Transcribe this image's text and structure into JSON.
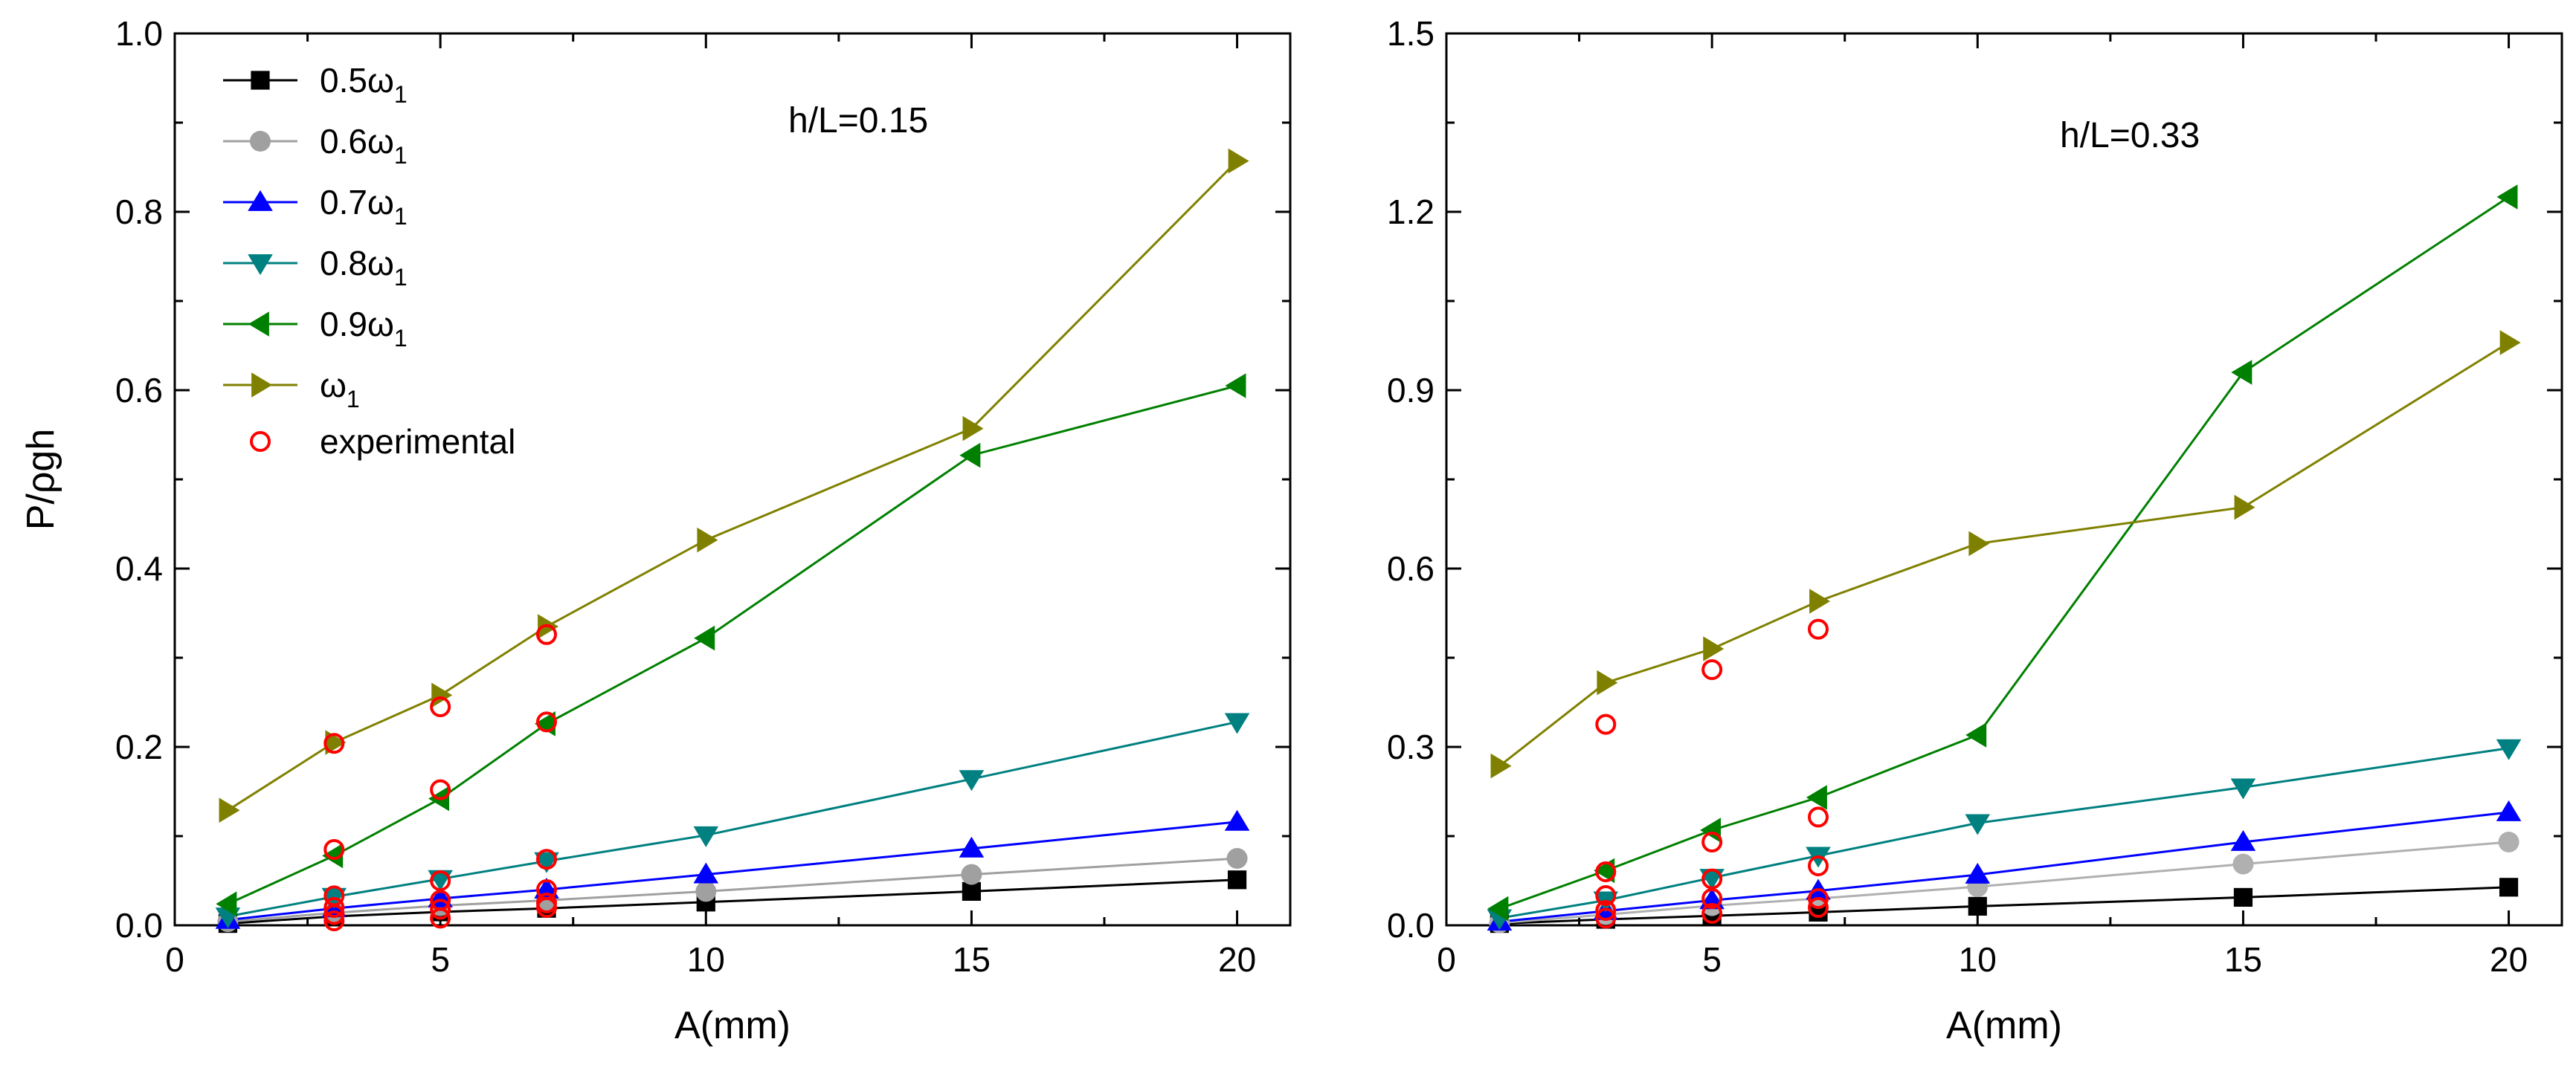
{
  "chart_data": [
    {
      "type": "line",
      "annotation": "h/L=0.15",
      "xlabel": "A(mm)",
      "ylabel": "P/ρgh",
      "xlim": [
        0,
        21
      ],
      "ylim": [
        0,
        1.0
      ],
      "xticks": [
        0,
        5,
        10,
        15,
        20
      ],
      "yticks": [
        0.0,
        0.2,
        0.4,
        0.6,
        0.8,
        1.0
      ],
      "ytick_labels": [
        "0.0",
        "0.2",
        "0.4",
        "0.6",
        "0.8",
        "1.0"
      ],
      "x": [
        1,
        3,
        5,
        7,
        10,
        15,
        20
      ],
      "series": [
        {
          "name": "0.5ω1",
          "label_main": "0.5ω",
          "label_sub": "1",
          "color": "#000000",
          "marker": "square",
          "values": [
            0.002,
            0.01,
            0.015,
            0.019,
            0.026,
            0.038,
            0.051
          ]
        },
        {
          "name": "0.6ω1",
          "label_main": "0.6ω",
          "label_sub": "1",
          "color": "#a0a0a0",
          "marker": "circle",
          "values": [
            0.004,
            0.014,
            0.022,
            0.028,
            0.038,
            0.057,
            0.075
          ]
        },
        {
          "name": "0.7ω1",
          "label_main": "0.7ω",
          "label_sub": "1",
          "color": "#0000ff",
          "marker": "triangle-up",
          "values": [
            0.006,
            0.019,
            0.03,
            0.04,
            0.057,
            0.086,
            0.116
          ]
        },
        {
          "name": "0.8ω1",
          "label_main": "0.8ω",
          "label_sub": "1",
          "color": "#008080",
          "marker": "triangle-down",
          "values": [
            0.01,
            0.032,
            0.052,
            0.072,
            0.101,
            0.164,
            0.228
          ]
        },
        {
          "name": "0.9ω1",
          "label_main": "0.9ω",
          "label_sub": "1",
          "color": "#008000",
          "marker": "triangle-left",
          "values": [
            0.024,
            0.078,
            0.142,
            0.226,
            0.322,
            0.527,
            0.605
          ]
        },
        {
          "name": "ω1",
          "label_main": "ω",
          "label_sub": "1",
          "color": "#808000",
          "marker": "triangle-right",
          "values": [
            0.129,
            0.205,
            0.258,
            0.335,
            0.432,
            0.557,
            0.857
          ]
        }
      ],
      "experimental": {
        "name": "experimental",
        "color": "#ff0000",
        "points": [
          {
            "x": 3,
            "y": 0.005
          },
          {
            "x": 3,
            "y": 0.012
          },
          {
            "x": 3,
            "y": 0.02
          },
          {
            "x": 3,
            "y": 0.033
          },
          {
            "x": 3,
            "y": 0.085
          },
          {
            "x": 3,
            "y": 0.204
          },
          {
            "x": 5,
            "y": 0.008
          },
          {
            "x": 5,
            "y": 0.018
          },
          {
            "x": 5,
            "y": 0.028
          },
          {
            "x": 5,
            "y": 0.05
          },
          {
            "x": 5,
            "y": 0.152
          },
          {
            "x": 5,
            "y": 0.245
          },
          {
            "x": 7,
            "y": 0.02
          },
          {
            "x": 7,
            "y": 0.025
          },
          {
            "x": 7,
            "y": 0.04
          },
          {
            "x": 7,
            "y": 0.074
          },
          {
            "x": 7,
            "y": 0.228
          },
          {
            "x": 7,
            "y": 0.326
          }
        ]
      }
    },
    {
      "type": "line",
      "annotation": "h/L=0.33",
      "xlabel": "A(mm)",
      "ylabel": "",
      "xlim": [
        0,
        21
      ],
      "ylim": [
        0,
        1.5
      ],
      "xticks": [
        0,
        5,
        10,
        15,
        20
      ],
      "yticks": [
        0.0,
        0.3,
        0.6,
        0.9,
        1.2,
        1.5
      ],
      "ytick_labels": [
        "0.0",
        "0.3",
        "0.6",
        "0.9",
        "1.2",
        "1.5"
      ],
      "x": [
        1,
        3,
        5,
        7,
        10,
        15,
        20
      ],
      "series": [
        {
          "name": "0.5ω1",
          "color": "#000000",
          "marker": "square",
          "values": [
            0.003,
            0.01,
            0.016,
            0.022,
            0.032,
            0.047,
            0.064
          ]
        },
        {
          "name": "0.6ω1",
          "color": "#b0b0b0",
          "marker": "circle",
          "values": [
            0.004,
            0.018,
            0.033,
            0.045,
            0.065,
            0.103,
            0.14
          ]
        },
        {
          "name": "0.7ω1",
          "color": "#0000ff",
          "marker": "triangle-up",
          "values": [
            0.006,
            0.024,
            0.042,
            0.058,
            0.085,
            0.14,
            0.19
          ]
        },
        {
          "name": "0.8ω1",
          "color": "#008080",
          "marker": "triangle-down",
          "values": [
            0.012,
            0.042,
            0.08,
            0.117,
            0.172,
            0.232,
            0.298
          ]
        },
        {
          "name": "0.9ω1",
          "color": "#008000",
          "marker": "triangle-left",
          "values": [
            0.028,
            0.092,
            0.16,
            0.215,
            0.32,
            0.93,
            1.225
          ]
        },
        {
          "name": "ω1",
          "color": "#808000",
          "marker": "triangle-right",
          "values": [
            0.268,
            0.408,
            0.465,
            0.545,
            0.642,
            0.703,
            0.98
          ]
        }
      ],
      "experimental": {
        "name": "experimental",
        "color": "#ff0000",
        "points": [
          {
            "x": 3,
            "y": 0.012
          },
          {
            "x": 3,
            "y": 0.025
          },
          {
            "x": 3,
            "y": 0.05
          },
          {
            "x": 3,
            "y": 0.09
          },
          {
            "x": 3,
            "y": 0.338
          },
          {
            "x": 5,
            "y": 0.02
          },
          {
            "x": 5,
            "y": 0.045
          },
          {
            "x": 5,
            "y": 0.078
          },
          {
            "x": 5,
            "y": 0.14
          },
          {
            "x": 5,
            "y": 0.43
          },
          {
            "x": 7,
            "y": 0.03
          },
          {
            "x": 7,
            "y": 0.045
          },
          {
            "x": 7,
            "y": 0.1
          },
          {
            "x": 7,
            "y": 0.182
          },
          {
            "x": 7,
            "y": 0.498
          }
        ]
      }
    }
  ]
}
